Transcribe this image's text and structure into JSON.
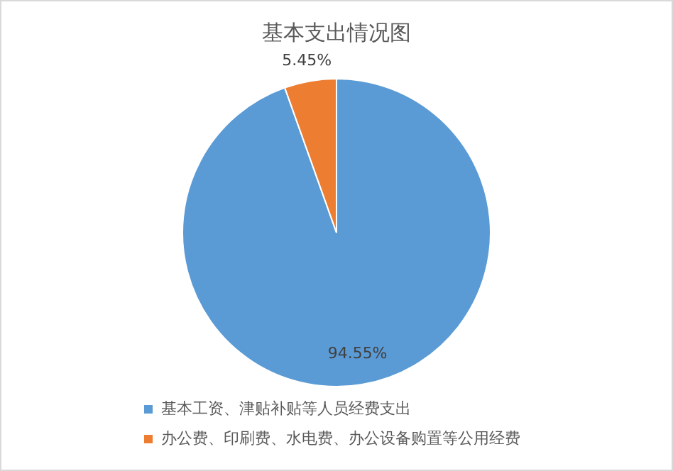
{
  "chart_data": {
    "type": "pie",
    "title": "基本支出情况图",
    "categories": [
      "基本工资、津贴补贴等人员经费支出",
      "办公费、印刷费、水电费、办公设备购置等公用经费"
    ],
    "values": [
      94.55,
      5.45
    ],
    "colors": [
      "#5b9bd5",
      "#ed7d31"
    ],
    "value_labels": [
      "94.55%",
      "5.45%"
    ],
    "legend": "bottom"
  }
}
